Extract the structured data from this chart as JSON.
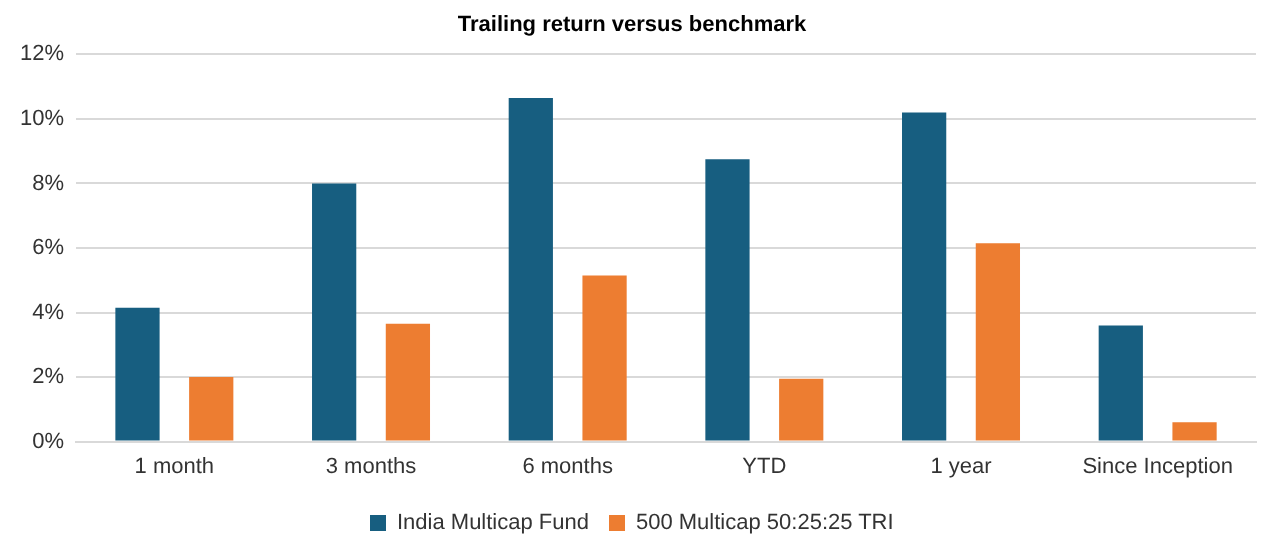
{
  "chart_data": {
    "type": "bar",
    "title": "Trailing return versus benchmark",
    "categories": [
      "1 month",
      "3 months",
      "6 months",
      "YTD",
      "1 year",
      "Since Inception"
    ],
    "series": [
      {
        "name": "India Multicap Fund",
        "color": "#175e80",
        "values": [
          4.15,
          8.0,
          10.65,
          8.75,
          10.2,
          3.6
        ]
      },
      {
        "name": "500 Multicap 50:25:25 TRI",
        "color": "#ed7d31",
        "values": [
          2.0,
          3.65,
          5.15,
          1.95,
          6.15,
          0.6
        ]
      }
    ],
    "ylim": [
      0,
      12
    ],
    "yticks": [
      {
        "value": 0,
        "label": "0%"
      },
      {
        "value": 2,
        "label": "2%"
      },
      {
        "value": 4,
        "label": "4%"
      },
      {
        "value": 6,
        "label": "6%"
      },
      {
        "value": 8,
        "label": "8%"
      },
      {
        "value": 10,
        "label": "10%"
      },
      {
        "value": 12,
        "label": "12%"
      }
    ],
    "grid": "y",
    "legend": "bottom"
  }
}
